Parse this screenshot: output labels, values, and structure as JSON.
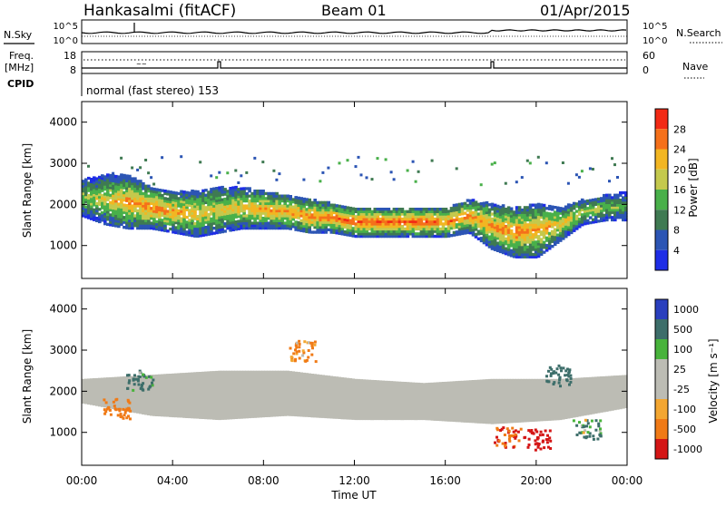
{
  "header": {
    "station": "Hankasalmi (fitACF)",
    "beam": "Beam 01",
    "date": "01/Apr/2015"
  },
  "noise_panel": {
    "left_label": "N.Sky",
    "right_label": "N.Search",
    "left_ticks": [
      "10^5",
      "10^0"
    ],
    "right_ticks": [
      "10^5",
      "10^0"
    ]
  },
  "freq_panel": {
    "left_label_1": "Freq.",
    "left_label_2": "[MHz]",
    "left_ticks": [
      "18",
      "8"
    ],
    "right_label": "Nave",
    "right_ticks": [
      "60",
      "0"
    ]
  },
  "cpid_panel": {
    "label": "CPID",
    "text": "normal (fast stereo) 153"
  },
  "x_axis": {
    "label": "Time UT",
    "ticks": [
      "00:00",
      "04:00",
      "08:00",
      "12:00",
      "16:00",
      "20:00",
      "00:00"
    ]
  },
  "colors": {
    "power": [
      "#1e2de6",
      "#2c55b4",
      "#3f7a52",
      "#49b04a",
      "#c4c94d",
      "#f2b622",
      "#f5701a",
      "#f22a15"
    ],
    "velocity": [
      "#d41616",
      "#f07a16",
      "#f3a631",
      "#bcbcb4",
      "#bcbcb4",
      "#48b33b",
      "#3d6e6a",
      "#2a3fbe"
    ]
  },
  "chart_data": [
    {
      "type": "heatmap",
      "title": "",
      "xlabel": "Time UT",
      "ylabel": "Slant Range [km]",
      "xlim": [
        "00:00",
        "24:00"
      ],
      "ylim": [
        200,
        4500
      ],
      "yticks": [
        "4000",
        "3000",
        "2000",
        "1000"
      ],
      "colorbar": {
        "label": "Power [dB]",
        "ticks": [
          "28",
          "24",
          "20",
          "16",
          "12",
          "8",
          "4"
        ],
        "range": [
          0,
          32
        ]
      },
      "echo_band": [
        {
          "t": 0.0,
          "lo": 1700,
          "hi": 2600,
          "p": 16
        },
        {
          "t": 1.0,
          "lo": 1500,
          "hi": 2700,
          "p": 20
        },
        {
          "t": 2.0,
          "lo": 1400,
          "hi": 2700,
          "p": 24
        },
        {
          "t": 3.0,
          "lo": 1400,
          "hi": 2400,
          "p": 26
        },
        {
          "t": 4.0,
          "lo": 1300,
          "hi": 2300,
          "p": 24
        },
        {
          "t": 5.0,
          "lo": 1200,
          "hi": 2300,
          "p": 22
        },
        {
          "t": 6.0,
          "lo": 1300,
          "hi": 2400,
          "p": 20
        },
        {
          "t": 7.0,
          "lo": 1400,
          "hi": 2400,
          "p": 22
        },
        {
          "t": 8.0,
          "lo": 1400,
          "hi": 2300,
          "p": 24
        },
        {
          "t": 9.0,
          "lo": 1400,
          "hi": 2200,
          "p": 24
        },
        {
          "t": 10.0,
          "lo": 1300,
          "hi": 2100,
          "p": 26
        },
        {
          "t": 11.0,
          "lo": 1300,
          "hi": 2000,
          "p": 26
        },
        {
          "t": 12.0,
          "lo": 1200,
          "hi": 1900,
          "p": 28
        },
        {
          "t": 13.0,
          "lo": 1200,
          "hi": 1900,
          "p": 28
        },
        {
          "t": 14.0,
          "lo": 1200,
          "hi": 1900,
          "p": 28
        },
        {
          "t": 15.0,
          "lo": 1200,
          "hi": 1900,
          "p": 28
        },
        {
          "t": 16.0,
          "lo": 1200,
          "hi": 1900,
          "p": 26
        },
        {
          "t": 17.0,
          "lo": 1300,
          "hi": 2100,
          "p": 24
        },
        {
          "t": 18.0,
          "lo": 900,
          "hi": 2000,
          "p": 24
        },
        {
          "t": 19.0,
          "lo": 700,
          "hi": 1900,
          "p": 26
        },
        {
          "t": 20.0,
          "lo": 700,
          "hi": 2000,
          "p": 24
        },
        {
          "t": 21.0,
          "lo": 1100,
          "hi": 1900,
          "p": 22
        },
        {
          "t": 22.0,
          "lo": 1500,
          "hi": 2100,
          "p": 18
        },
        {
          "t": 23.0,
          "lo": 1600,
          "hi": 2200,
          "p": 16
        },
        {
          "t": 24.0,
          "lo": 1600,
          "hi": 2300,
          "p": 14
        }
      ]
    },
    {
      "type": "heatmap",
      "title": "",
      "xlabel": "Time UT",
      "ylabel": "Slant Range [km]",
      "xlim": [
        "00:00",
        "24:00"
      ],
      "ylim": [
        200,
        4500
      ],
      "yticks": [
        "4000",
        "3000",
        "2000",
        "1000"
      ],
      "colorbar": {
        "label": "Velocity [m s⁻¹]",
        "ticks": [
          "1000",
          "500",
          "100",
          "25",
          "-25",
          "-100",
          "-500",
          "-1000"
        ]
      },
      "ground_band": [
        {
          "t": 0.0,
          "lo": 1700,
          "hi": 2300
        },
        {
          "t": 3.0,
          "lo": 1400,
          "hi": 2400
        },
        {
          "t": 6.0,
          "lo": 1300,
          "hi": 2500
        },
        {
          "t": 9.0,
          "lo": 1400,
          "hi": 2500
        },
        {
          "t": 12.0,
          "lo": 1300,
          "hi": 2300
        },
        {
          "t": 15.0,
          "lo": 1300,
          "hi": 2200
        },
        {
          "t": 18.0,
          "lo": 1200,
          "hi": 2300
        },
        {
          "t": 21.0,
          "lo": 1300,
          "hi": 2300
        },
        {
          "t": 24.0,
          "lo": 1600,
          "hi": 2400
        }
      ],
      "scatter_patches": [
        {
          "t": 1.5,
          "r": 1600,
          "v": -300
        },
        {
          "t": 2.5,
          "r": 2300,
          "v": 200
        },
        {
          "t": 9.7,
          "r": 3000,
          "v": -200
        },
        {
          "t": 18.7,
          "r": 900,
          "v": -500
        },
        {
          "t": 20.0,
          "r": 850,
          "v": -700
        },
        {
          "t": 21.0,
          "r": 2400,
          "v": 300
        },
        {
          "t": 22.2,
          "r": 1100,
          "v": 100
        }
      ]
    }
  ]
}
